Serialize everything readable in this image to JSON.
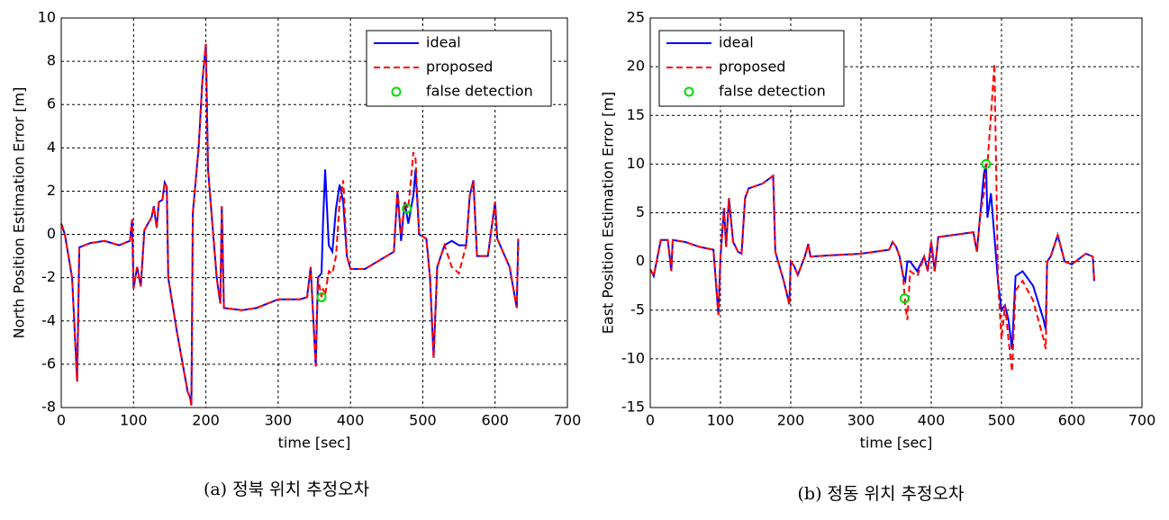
{
  "chart_data": [
    {
      "type": "line",
      "caption": "(a) 정북 위치 추정오차",
      "xlabel": "time [sec]",
      "ylabel": "North Position Estimation Error [m]",
      "xlim": [
        0,
        700
      ],
      "xticks": [
        0,
        100,
        200,
        300,
        400,
        500,
        600,
        700
      ],
      "ylim": [
        -8,
        10
      ],
      "yticks": [
        -8,
        -6,
        -4,
        -2,
        0,
        2,
        4,
        6,
        8,
        10
      ],
      "grid": true,
      "legend": "upper right",
      "x": [
        0,
        5,
        15,
        22,
        25,
        40,
        60,
        80,
        95,
        98,
        100,
        105,
        110,
        115,
        125,
        128,
        132,
        135,
        140,
        143,
        146,
        148,
        160,
        175,
        178,
        180,
        182,
        190,
        195,
        200,
        203,
        215,
        220,
        222,
        225,
        250,
        270,
        300,
        330,
        340,
        345,
        348,
        352,
        355,
        360,
        362,
        365,
        370,
        375,
        380,
        385,
        390,
        395,
        400,
        420,
        440,
        460,
        465,
        470,
        475,
        480,
        487,
        490,
        495,
        505,
        510,
        515,
        520,
        530,
        540,
        550,
        560,
        565,
        570,
        575,
        590,
        600,
        603,
        620,
        630,
        632
      ],
      "series": [
        {
          "name": "ideal",
          "color": "#0000ff",
          "dash": false,
          "values": [
            0.5,
            0,
            -2,
            -6.8,
            -0.6,
            -0.4,
            -0.3,
            -0.5,
            -0.3,
            0.7,
            -2.5,
            -1.5,
            -2.4,
            0.2,
            0.8,
            1.3,
            0.3,
            1.5,
            1.6,
            2.4,
            2.2,
            -2,
            -4.5,
            -7.3,
            -7.5,
            -7.9,
            1,
            4,
            7,
            8.8,
            3,
            -2,
            -3.2,
            1.3,
            -3.4,
            -3.5,
            -3.4,
            -3,
            -3,
            -2.9,
            -1.5,
            -3.5,
            -6.1,
            -2,
            -1.8,
            0.5,
            3.0,
            -0.5,
            -0.8,
            1.2,
            2.3,
            1.5,
            -1.0,
            -1.6,
            -1.6,
            -1.2,
            -0.8,
            2.0,
            -0.3,
            1.5,
            0.5,
            1.8,
            3.0,
            0,
            -0.2,
            -2,
            -5.7,
            -1.5,
            -0.5,
            -0.3,
            -0.5,
            -0.5,
            1.8,
            2.5,
            -1.0,
            -1.0,
            1.5,
            -0.2,
            -1.5,
            -3.4,
            -0.2
          ]
        },
        {
          "name": "proposed",
          "color": "#ff0000",
          "dash": true,
          "values": [
            0.5,
            0,
            -2,
            -6.8,
            -0.6,
            -0.4,
            -0.3,
            -0.5,
            -0.3,
            0.7,
            -2.5,
            -1.5,
            -2.4,
            0.2,
            0.8,
            1.3,
            0.3,
            1.5,
            1.6,
            2.4,
            2.2,
            -2,
            -4.5,
            -7.3,
            -7.5,
            -7.9,
            1,
            4,
            7,
            8.8,
            3,
            -2,
            -3.2,
            1.3,
            -3.4,
            -3.5,
            -3.4,
            -3,
            -3,
            -2.9,
            -1.5,
            -3.5,
            -6.1,
            -2,
            -2.9,
            -2.5,
            -2.8,
            -1.7,
            -1.8,
            -1.0,
            1.5,
            2.5,
            -1.0,
            -1.6,
            -1.6,
            -1.2,
            -0.8,
            2.0,
            0,
            1.5,
            1.2,
            3.8,
            3.5,
            0,
            -0.2,
            -2,
            -5.7,
            -1.5,
            -0.5,
            -1.5,
            -1.8,
            -0.5,
            1.8,
            2.5,
            -1.0,
            -1.0,
            1.5,
            -0.2,
            -1.5,
            -3.4,
            -0.2
          ]
        },
        {
          "name": "false detection",
          "color": "#00dd00",
          "marker": "circle",
          "x": [
            360,
            478
          ],
          "values": [
            -2.9,
            1.2
          ]
        }
      ]
    },
    {
      "type": "line",
      "caption": "(b) 정동 위치 추정오차",
      "xlabel": "time [sec]",
      "ylabel": "East Position Estimation Error [m]",
      "xlim": [
        0,
        700
      ],
      "xticks": [
        0,
        100,
        200,
        300,
        400,
        500,
        600,
        700
      ],
      "ylim": [
        -15,
        25
      ],
      "yticks": [
        -15,
        -10,
        -5,
        0,
        5,
        10,
        15,
        20,
        25
      ],
      "grid": true,
      "legend": "upper left",
      "x": [
        0,
        5,
        15,
        25,
        30,
        32,
        50,
        70,
        90,
        97,
        100,
        105,
        108,
        112,
        118,
        125,
        130,
        135,
        140,
        160,
        175,
        178,
        190,
        198,
        200,
        205,
        210,
        220,
        225,
        228,
        250,
        300,
        340,
        345,
        350,
        355,
        360,
        363,
        366,
        370,
        380,
        390,
        395,
        400,
        405,
        410,
        430,
        460,
        465,
        470,
        475,
        478,
        480,
        485,
        490,
        495,
        500,
        505,
        510,
        515,
        520,
        530,
        545,
        560,
        563,
        565,
        570,
        580,
        590,
        600,
        620,
        630,
        632
      ],
      "series": [
        {
          "name": "ideal",
          "color": "#0000ff",
          "dash": false,
          "values": [
            -0.8,
            -1.5,
            2.2,
            2.2,
            -1,
            2.2,
            2,
            1.5,
            1.2,
            -5.5,
            0.5,
            5.5,
            1.5,
            6.5,
            2,
            1,
            0.8,
            6.5,
            7.5,
            8,
            8.8,
            1,
            -2,
            -4.4,
            0,
            -0.5,
            -1.4,
            0.5,
            1.8,
            0.5,
            0.6,
            0.8,
            1.2,
            2.0,
            1.5,
            0.5,
            -1.5,
            -2,
            0,
            0,
            -1,
            0.5,
            -1,
            2,
            -1,
            2.5,
            2.7,
            3,
            1,
            5,
            9,
            10,
            4.5,
            7,
            2.5,
            -2,
            -5,
            -4.5,
            -6,
            -9,
            -1.5,
            -1,
            -2.5,
            -6,
            -7,
            0,
            0.5,
            2.7,
            0,
            -0.3,
            0.8,
            0.5,
            -2
          ]
        },
        {
          "name": "proposed",
          "color": "#ff0000",
          "dash": true,
          "values": [
            -0.8,
            -1.5,
            2.2,
            2.2,
            -1,
            2.2,
            2,
            1.5,
            1.2,
            -5.5,
            0.5,
            5.5,
            1.5,
            6.5,
            2,
            1,
            0.8,
            6.5,
            7.5,
            8,
            8.8,
            1,
            -2,
            -4.4,
            0,
            -0.5,
            -1.4,
            0.5,
            1.8,
            0.5,
            0.6,
            0.8,
            1.2,
            2.0,
            1.5,
            0.5,
            -1.5,
            -4.5,
            -6,
            -1,
            -1.5,
            0.5,
            -1,
            2,
            -1,
            2.5,
            2.7,
            3,
            1,
            5,
            7,
            10,
            10,
            15,
            20.3,
            -2,
            -8,
            -4.5,
            -8,
            -11.3,
            -3,
            -2,
            -4,
            -8,
            -9,
            0,
            0.5,
            2.7,
            0,
            -0.3,
            0.8,
            0.5,
            -2
          ]
        },
        {
          "name": "false detection",
          "color": "#00dd00",
          "marker": "circle",
          "x": [
            362,
            478
          ],
          "values": [
            -3.8,
            10
          ]
        }
      ]
    }
  ]
}
